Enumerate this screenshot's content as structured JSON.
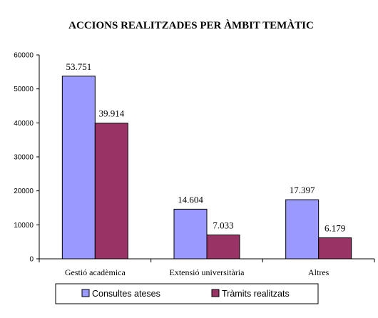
{
  "chart_data": {
    "type": "bar",
    "title": "ACCIONS REALITZADES PER ÀMBIT TEMÀTIC",
    "xlabel": "",
    "ylabel": "",
    "categories": [
      "Gestió acadèmica",
      "Extensió universitària",
      "Altres"
    ],
    "series": [
      {
        "name": "Consultes ateses",
        "color": "#9999ff",
        "values": [
          53751,
          14604,
          17397
        ],
        "labels": [
          "53.751",
          "14.604",
          "17.397"
        ]
      },
      {
        "name": "Tràmits realitzats",
        "color": "#993366",
        "values": [
          39914,
          7033,
          6179
        ],
        "labels": [
          "39.914",
          "7.033",
          "6.179"
        ]
      }
    ],
    "ylim": [
      0,
      60000
    ],
    "yticks": [
      0,
      10000,
      20000,
      30000,
      40000,
      50000,
      60000
    ],
    "grid": false,
    "legend_position": "bottom"
  }
}
